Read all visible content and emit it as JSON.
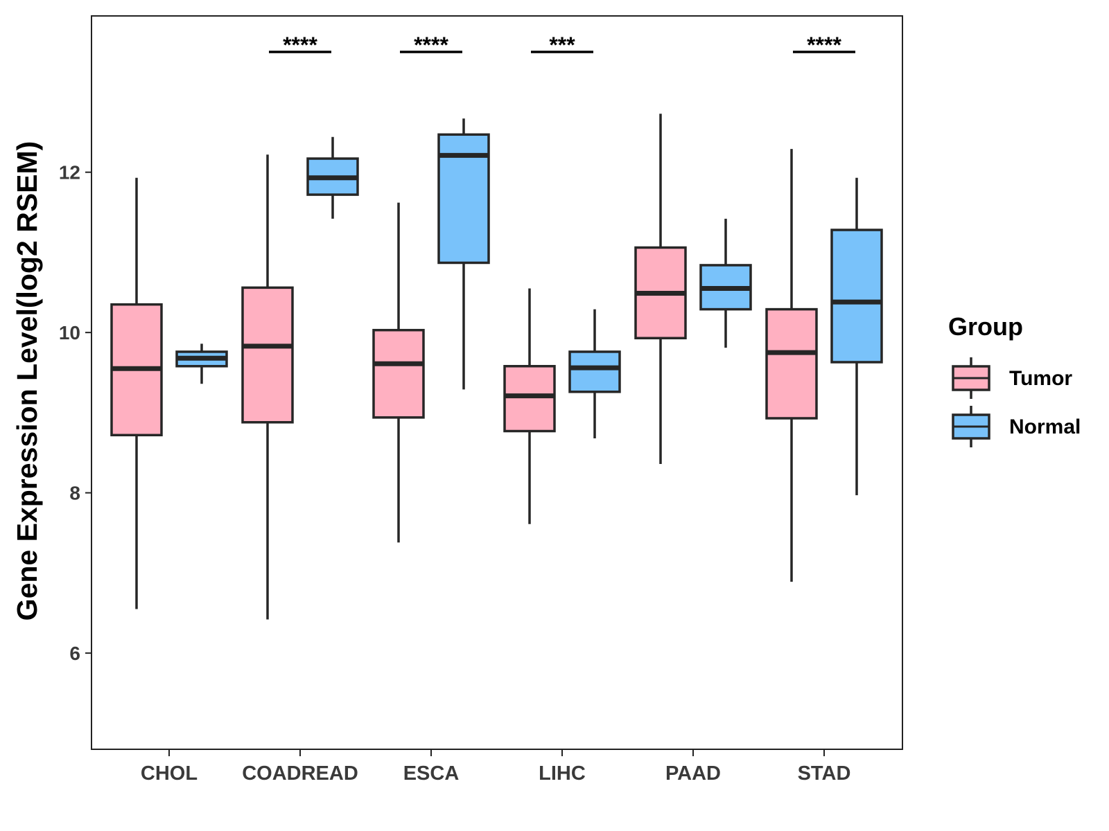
{
  "chart_data": {
    "type": "boxplot",
    "title": "",
    "xlabel": "",
    "ylabel": "Gene Expression Level(log2 RSEM)",
    "ylim": [
      4.8,
      13.95
    ],
    "yticks": [
      6,
      8,
      10,
      12
    ],
    "categories": [
      "CHOL",
      "COADREAD",
      "ESCA",
      "LIHC",
      "PAAD",
      "STAD"
    ],
    "legend": {
      "title": "Group",
      "position": "right",
      "entries": [
        {
          "name": "Tumor",
          "color": "#FFB0C1"
        },
        {
          "name": "Normal",
          "color": "#79C2FA"
        }
      ]
    },
    "series": [
      {
        "name": "Tumor",
        "color": "#FFB0C1",
        "boxes": [
          {
            "min": 6.55,
            "q1": 8.72,
            "median": 9.55,
            "q3": 10.35,
            "max": 11.93
          },
          {
            "min": 6.42,
            "q1": 8.88,
            "median": 9.83,
            "q3": 10.56,
            "max": 12.22
          },
          {
            "min": 7.38,
            "q1": 8.94,
            "median": 9.61,
            "q3": 10.03,
            "max": 11.62
          },
          {
            "min": 7.61,
            "q1": 8.77,
            "median": 9.21,
            "q3": 9.58,
            "max": 10.55
          },
          {
            "min": 8.36,
            "q1": 9.93,
            "median": 10.49,
            "q3": 11.06,
            "max": 12.73
          },
          {
            "min": 6.89,
            "q1": 8.93,
            "median": 9.75,
            "q3": 10.29,
            "max": 12.29
          }
        ]
      },
      {
        "name": "Normal",
        "color": "#79C2FA",
        "boxes": [
          {
            "min": 9.36,
            "q1": 9.58,
            "median": 9.68,
            "q3": 9.76,
            "max": 9.86
          },
          {
            "min": 11.42,
            "q1": 11.72,
            "median": 11.93,
            "q3": 12.17,
            "max": 12.44
          },
          {
            "min": 9.29,
            "q1": 10.87,
            "median": 12.21,
            "q3": 12.47,
            "max": 12.67
          },
          {
            "min": 8.68,
            "q1": 9.26,
            "median": 9.56,
            "q3": 9.76,
            "max": 10.29
          },
          {
            "min": 9.81,
            "q1": 10.29,
            "median": 10.55,
            "q3": 10.84,
            "max": 11.42
          },
          {
            "min": 7.97,
            "q1": 9.63,
            "median": 10.38,
            "q3": 11.28,
            "max": 11.93
          }
        ]
      }
    ],
    "significance": [
      {
        "category": "COADREAD",
        "label": "****"
      },
      {
        "category": "ESCA",
        "label": "****"
      },
      {
        "category": "LIHC",
        "label": "***"
      },
      {
        "category": "STAD",
        "label": "****"
      }
    ]
  }
}
